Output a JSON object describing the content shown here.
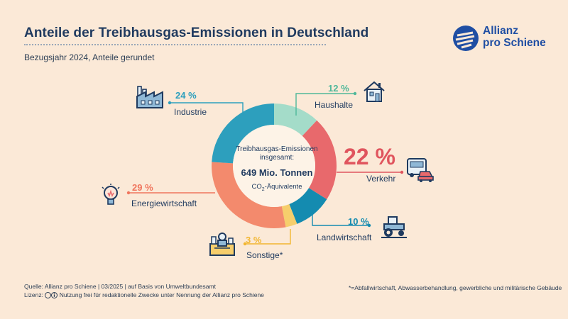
{
  "header": {
    "title": "Anteile der Treibhausgas-Emissionen in Deutschland",
    "subtitle": "Bezugsjahr 2024, Anteile gerundet"
  },
  "logo": {
    "line1": "Allianz",
    "line2": "pro Schiene"
  },
  "center": {
    "line1": "Treibhausgas-Emissionen",
    "line2": "insgesamt:",
    "total": "649 Mio. Tonnen",
    "unit_prefix": "CO",
    "unit_sub": "2",
    "unit_suffix": "-Äquivalente"
  },
  "chart_data": {
    "type": "pie",
    "title": "Anteile der Treibhausgas-Emissionen in Deutschland",
    "subtitle": "Bezugsjahr 2024, Anteile gerundet",
    "total": "649 Mio. Tonnen CO2-Äquivalente",
    "categories": [
      "Haushalte",
      "Verkehr",
      "Landwirtschaft",
      "Sonstige*",
      "Energiewirtschaft",
      "Industrie"
    ],
    "values": [
      12,
      22,
      10,
      3,
      29,
      24
    ],
    "value_labels": [
      "12 %",
      "22 %",
      "10 %",
      "3 %",
      "29 %",
      "24 %"
    ],
    "colors": [
      "#a4dcc9",
      "#e8696c",
      "#148bb0",
      "#f6ce6c",
      "#f38a6d",
      "#2d9fbd"
    ],
    "label_colors": [
      "#4fb89a",
      "#e0555e",
      "#148bb0",
      "#f2b630",
      "#f0755d",
      "#2d9fbd"
    ]
  },
  "icons": [
    "house-icon",
    "bus-car-icon",
    "tractor-icon",
    "worker-icon",
    "bulb-icon",
    "factory-icon"
  ],
  "footer": {
    "source": "Quelle: Allianz pro Schiene | 03/2025 | auf Basis von Umweltbundesamt",
    "license_label": "Lizenz:",
    "license_text": "Nutzung frei für redaktionelle Zwecke unter Nennung der Allianz pro Schiene",
    "footnote": "*=Abfallwirtschaft, Abwasserbehandlung, gewerbliche und militärische Gebäude"
  }
}
